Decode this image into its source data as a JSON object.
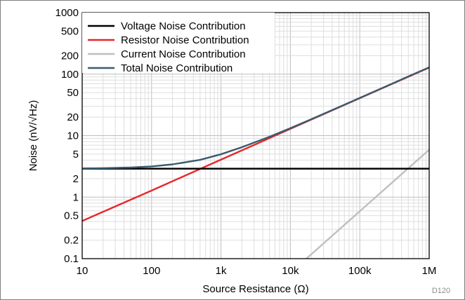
{
  "chart_data": {
    "type": "line",
    "title": "",
    "xlabel": "Source Resistance (Ω)",
    "ylabel": "Noise (nV/√Hz)",
    "x_scale": "log",
    "y_scale": "log",
    "xlim": [
      10,
      1000000
    ],
    "ylim": [
      0.1,
      1000
    ],
    "grid": true,
    "legend_position": "top-left",
    "x_ticks": [
      {
        "value": 10,
        "label": "10"
      },
      {
        "value": 100,
        "label": "100"
      },
      {
        "value": 1000,
        "label": "1k"
      },
      {
        "value": 10000,
        "label": "10k"
      },
      {
        "value": 100000,
        "label": "100k"
      },
      {
        "value": 1000000,
        "label": "1M"
      }
    ],
    "y_ticks": [
      {
        "value": 0.1,
        "label": "0.1"
      },
      {
        "value": 0.2,
        "label": "0.2"
      },
      {
        "value": 0.5,
        "label": "0.5"
      },
      {
        "value": 1,
        "label": "1"
      },
      {
        "value": 2,
        "label": "2"
      },
      {
        "value": 5,
        "label": "5"
      },
      {
        "value": 10,
        "label": "10"
      },
      {
        "value": 20,
        "label": "20"
      },
      {
        "value": 50,
        "label": "50"
      },
      {
        "value": 100,
        "label": "100"
      },
      {
        "value": 200,
        "label": "200"
      },
      {
        "value": 500,
        "label": "500"
      },
      {
        "value": 1000,
        "label": "1000"
      }
    ],
    "series": [
      {
        "name": "Voltage Noise Contribution",
        "color": "#000000",
        "x": [
          10,
          1000000
        ],
        "y": [
          2.9,
          2.9
        ]
      },
      {
        "name": "Resistor Noise Contribution",
        "color": "#e8262b",
        "x": [
          10,
          100,
          1000,
          10000,
          100000,
          1000000
        ],
        "y": [
          0.41,
          1.28,
          4.07,
          12.9,
          40.7,
          128
        ]
      },
      {
        "name": "Current Noise Contribution",
        "color": "#bfbfbf",
        "x": [
          17000,
          100000,
          1000000
        ],
        "y": [
          0.1,
          0.59,
          5.9
        ]
      },
      {
        "name": "Total Noise Contribution",
        "color": "#3a5b6e",
        "x": [
          10,
          20,
          50,
          100,
          200,
          500,
          1000,
          2000,
          5000,
          10000,
          20000,
          50000,
          100000,
          200000,
          500000,
          1000000
        ],
        "y": [
          2.93,
          2.96,
          3.03,
          3.16,
          3.41,
          4.04,
          4.98,
          6.48,
          9.58,
          13.2,
          18.5,
          29.1,
          41.0,
          57.9,
          91.6,
          129
        ]
      }
    ],
    "figure_id": "D120"
  }
}
